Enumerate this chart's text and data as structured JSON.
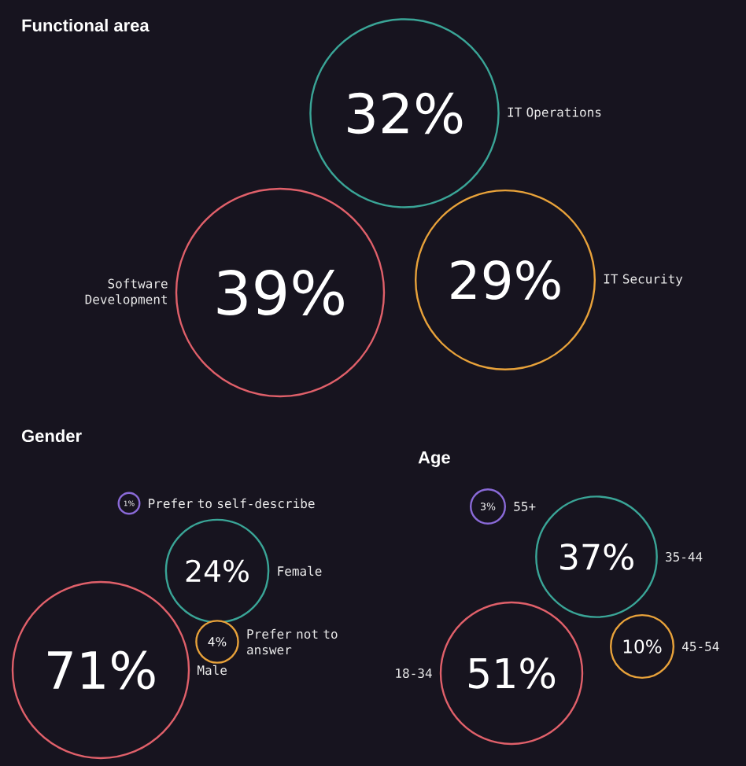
{
  "chart_data": [
    {
      "type": "other",
      "title": "Functional area",
      "categories": [
        "IT Operations",
        "Software Development",
        "IT Security"
      ],
      "values": [
        32,
        39,
        29
      ],
      "value_labels": [
        "32%",
        "39%",
        "29%"
      ],
      "colors": [
        "#3aa597",
        "#e0606a",
        "#e8a23a"
      ]
    },
    {
      "type": "other",
      "title": "Gender",
      "categories": [
        "Prefer to self-describe",
        "Female",
        "Male",
        "Prefer not to answer"
      ],
      "values": [
        1,
        24,
        71,
        4
      ],
      "value_labels": [
        "1%",
        "24%",
        "71%",
        "4%"
      ],
      "colors": [
        "#8a6ad8",
        "#3aa597",
        "#e0606a",
        "#e8a23a"
      ]
    },
    {
      "type": "other",
      "title": "Age",
      "categories": [
        "55+",
        "35-44",
        "18-34",
        "45-54"
      ],
      "values": [
        3,
        37,
        51,
        10
      ],
      "value_labels": [
        "3%",
        "37%",
        "51%",
        "10%"
      ],
      "colors": [
        "#8a6ad8",
        "#3aa597",
        "#e0606a",
        "#e8a23a"
      ]
    }
  ]
}
